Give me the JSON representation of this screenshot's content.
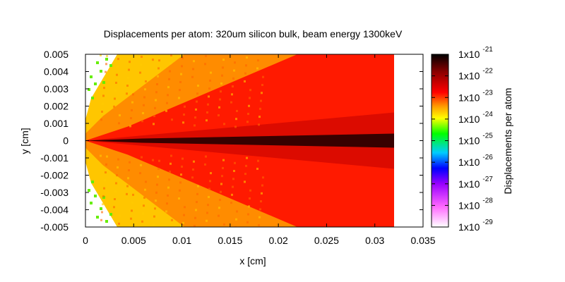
{
  "chart_data": {
    "type": "heatmap",
    "title": "Displacements per atom: 320um silicon bulk, beam energy 1300keV",
    "xlabel": "x [cm]",
    "ylabel": "y [cm]",
    "colorbar_label": "Displacements per atom",
    "xlim": [
      0,
      0.035
    ],
    "ylim": [
      -0.005,
      0.005
    ],
    "data_extent_x": [
      0,
      0.032
    ],
    "log_color_scale": true,
    "zlim": [
      1e-29,
      1e-21
    ],
    "grid": false,
    "legend": "colorbar-right",
    "x_ticks": [
      {
        "value": 0,
        "label": "0"
      },
      {
        "value": 0.005,
        "label": "0.005"
      },
      {
        "value": 0.01,
        "label": "0.01"
      },
      {
        "value": 0.015,
        "label": "0.015"
      },
      {
        "value": 0.02,
        "label": "0.02"
      },
      {
        "value": 0.025,
        "label": "0.025"
      },
      {
        "value": 0.03,
        "label": "0.03"
      },
      {
        "value": 0.035,
        "label": "0.035"
      }
    ],
    "y_ticks": [
      {
        "value": 0.005,
        "label": "0.005"
      },
      {
        "value": 0.004,
        "label": "0.004"
      },
      {
        "value": 0.003,
        "label": "0.003"
      },
      {
        "value": 0.002,
        "label": "0.002"
      },
      {
        "value": 0.001,
        "label": "0.001"
      },
      {
        "value": 0,
        "label": "0"
      },
      {
        "value": -0.001,
        "label": "-0.001"
      },
      {
        "value": -0.002,
        "label": "-0.002"
      },
      {
        "value": -0.003,
        "label": "-0.003"
      },
      {
        "value": -0.004,
        "label": "-0.004"
      },
      {
        "value": -0.005,
        "label": "-0.005"
      }
    ],
    "colorbar_ticks": [
      {
        "exponent": -21,
        "base": "1x10",
        "exp": "-21"
      },
      {
        "exponent": -22,
        "base": "1x10",
        "exp": "-22"
      },
      {
        "exponent": -23,
        "base": "1x10",
        "exp": "-23"
      },
      {
        "exponent": -24,
        "base": "1x10",
        "exp": "-24"
      },
      {
        "exponent": -25,
        "base": "1x10",
        "exp": "-25"
      },
      {
        "exponent": -26,
        "base": "1x10",
        "exp": "-26"
      },
      {
        "exponent": -27,
        "base": "1x10",
        "exp": "-27"
      },
      {
        "exponent": -28,
        "base": "1x10",
        "exp": "-28"
      },
      {
        "exponent": -29,
        "base": "1x10",
        "exp": "-29"
      }
    ],
    "palette": [
      "#ffffff",
      "#ff66ff",
      "#9900ff",
      "#0000ff",
      "#00ccff",
      "#00ff00",
      "#ffff00",
      "#ff9900",
      "#ff0000",
      "#880000",
      "#000000"
    ]
  }
}
